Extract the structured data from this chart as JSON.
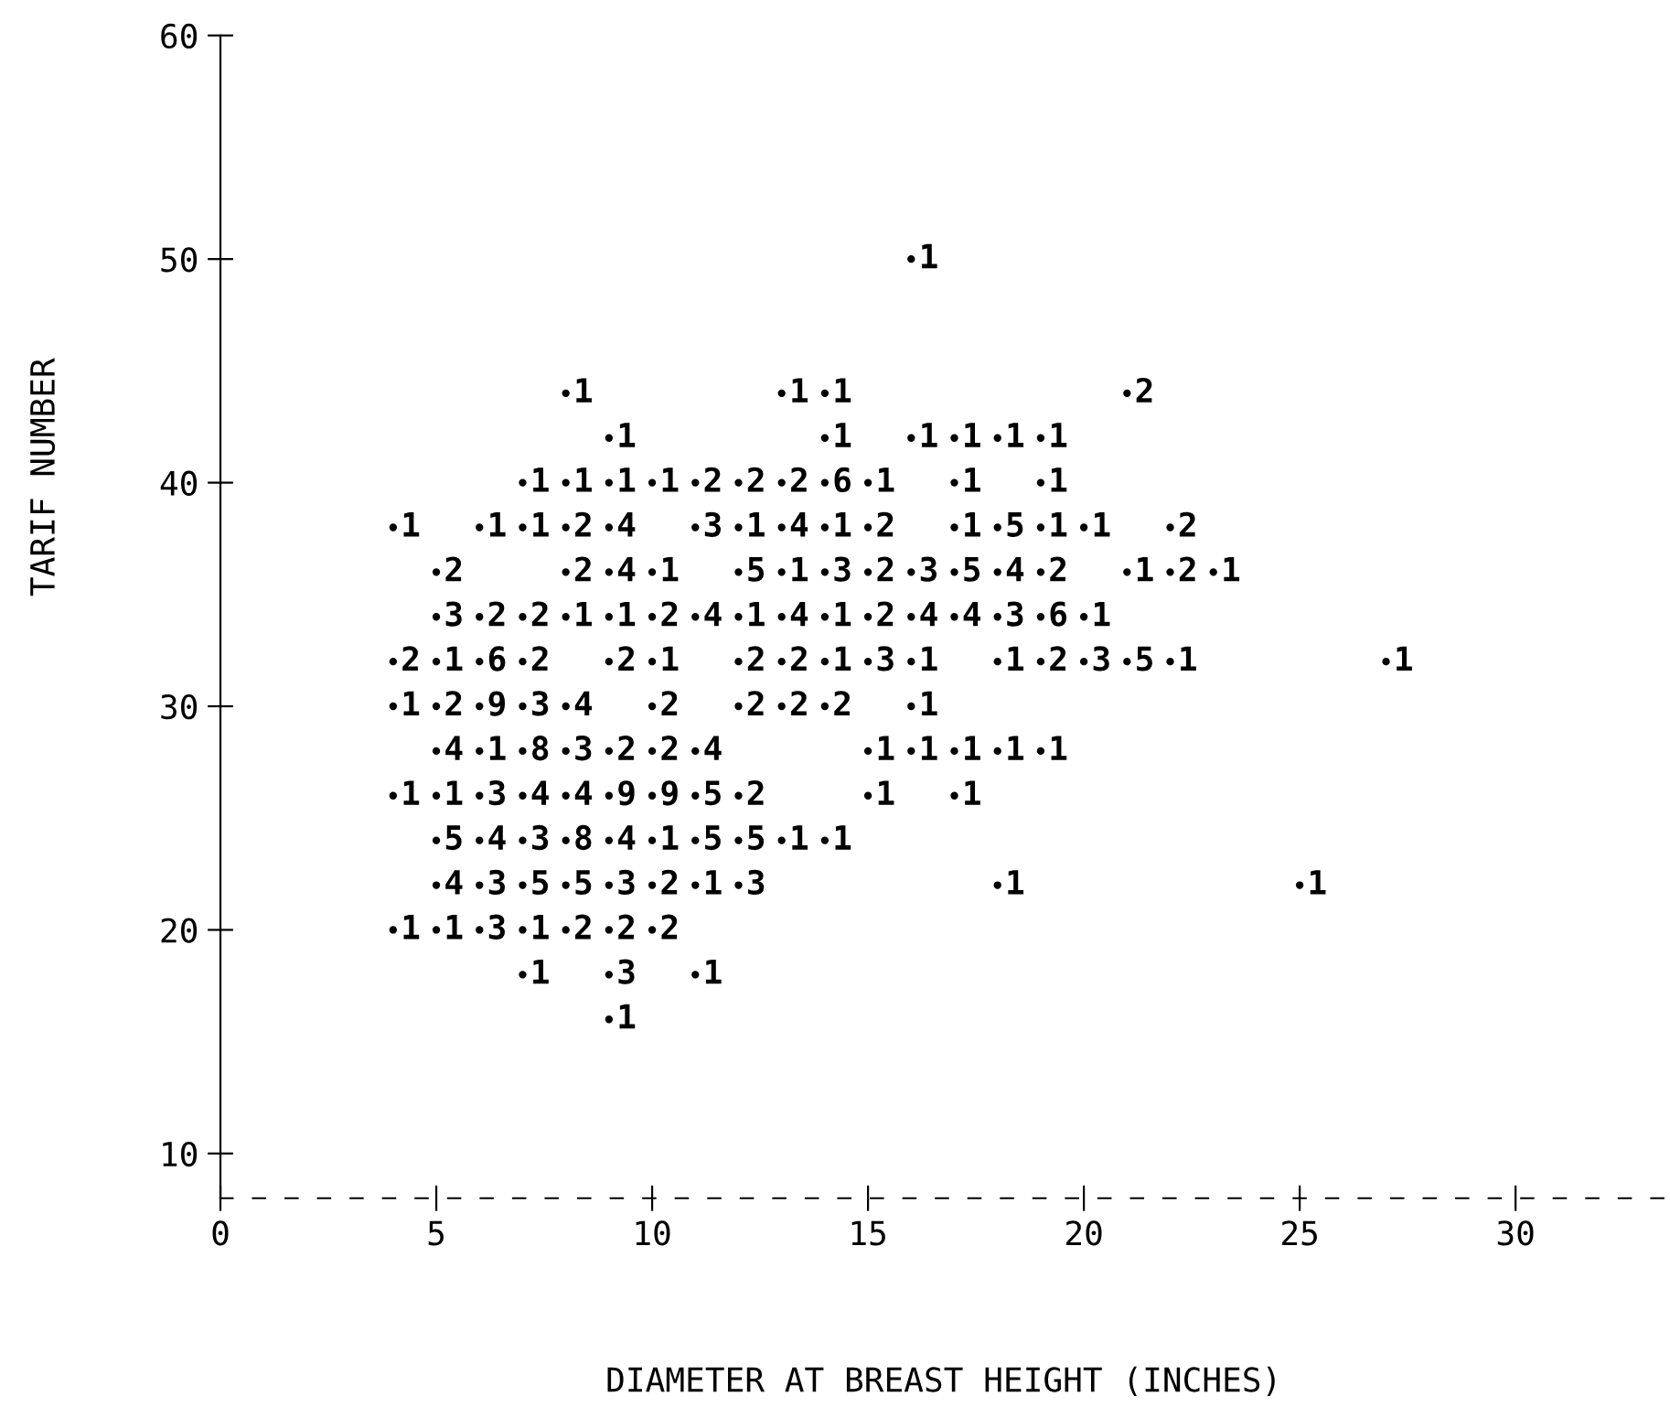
{
  "chart_data": {
    "type": "scatter",
    "xlabel": "DIAMETER AT BREAST HEIGHT (INCHES)",
    "ylabel": "TARIF NUMBER",
    "xlim": [
      0,
      33.5
    ],
    "ylim": [
      8,
      60
    ],
    "xticks": [
      0,
      5,
      10,
      15,
      20,
      25,
      30
    ],
    "yticks": [
      10,
      20,
      30,
      40,
      50,
      60
    ],
    "grid": false,
    "color": "#000000",
    "marker": "circle",
    "series": [
      {
        "name": "1",
        "x": [
          16,
          8,
          13,
          14,
          9,
          14,
          16,
          17,
          18,
          19,
          7,
          8,
          9,
          10,
          15,
          17,
          19,
          4,
          6,
          7,
          12,
          14,
          17,
          19,
          20,
          10,
          13,
          21,
          23,
          8,
          9,
          12,
          14,
          20,
          5,
          10,
          14,
          16,
          18,
          22,
          27,
          4,
          16,
          6,
          15,
          16,
          17,
          18,
          19,
          4,
          5,
          15,
          17,
          10,
          13,
          14,
          11,
          18,
          25,
          4,
          5,
          7,
          7,
          11,
          9
        ],
        "values": [
          50,
          44,
          44,
          44,
          42,
          42,
          42,
          42,
          42,
          42,
          40,
          40,
          40,
          40,
          40,
          40,
          40,
          38,
          38,
          38,
          38,
          38,
          38,
          38,
          38,
          36,
          36,
          36,
          36,
          34,
          34,
          34,
          34,
          34,
          32,
          32,
          32,
          32,
          32,
          32,
          32,
          30,
          30,
          28,
          28,
          28,
          28,
          28,
          28,
          26,
          26,
          26,
          26,
          24,
          24,
          24,
          22,
          22,
          22,
          20,
          20,
          20,
          18,
          18,
          16
        ]
      },
      {
        "name": "2",
        "x": [
          21,
          11,
          12,
          13,
          8,
          15,
          22,
          5,
          8,
          15,
          19,
          22,
          6,
          7,
          10,
          15,
          4,
          7,
          9,
          12,
          13,
          19,
          5,
          10,
          12,
          13,
          14,
          9,
          10,
          12,
          10,
          8,
          9,
          10
        ],
        "values": [
          44,
          40,
          40,
          40,
          38,
          38,
          38,
          36,
          36,
          36,
          36,
          36,
          34,
          34,
          34,
          34,
          32,
          32,
          32,
          32,
          32,
          32,
          30,
          30,
          30,
          30,
          30,
          28,
          28,
          26,
          22,
          20,
          20,
          20
        ]
      },
      {
        "name": "3",
        "x": [
          11,
          14,
          16,
          5,
          18,
          15,
          20,
          7,
          8,
          6,
          7,
          6,
          9,
          12,
          6,
          9
        ],
        "values": [
          38,
          36,
          36,
          34,
          34,
          32,
          32,
          30,
          28,
          26,
          24,
          22,
          22,
          22,
          20,
          18
        ]
      },
      {
        "name": "4",
        "x": [
          9,
          13,
          9,
          18,
          11,
          13,
          16,
          17,
          8,
          5,
          11,
          7,
          8,
          6,
          9,
          5
        ],
        "values": [
          38,
          38,
          36,
          36,
          34,
          34,
          34,
          34,
          30,
          28,
          28,
          26,
          26,
          24,
          24,
          22
        ]
      },
      {
        "name": "5",
        "x": [
          18,
          12,
          17,
          21,
          11,
          5,
          11,
          12,
          7,
          8
        ],
        "values": [
          38,
          36,
          36,
          32,
          26,
          24,
          24,
          24,
          22,
          22
        ]
      },
      {
        "name": "6",
        "x": [
          14,
          19,
          6
        ],
        "values": [
          40,
          34,
          32
        ]
      },
      {
        "name": "8",
        "x": [
          7,
          8
        ],
        "values": [
          28,
          24
        ]
      },
      {
        "name": "9",
        "x": [
          6,
          9,
          10
        ],
        "values": [
          30,
          26,
          26
        ]
      }
    ]
  }
}
